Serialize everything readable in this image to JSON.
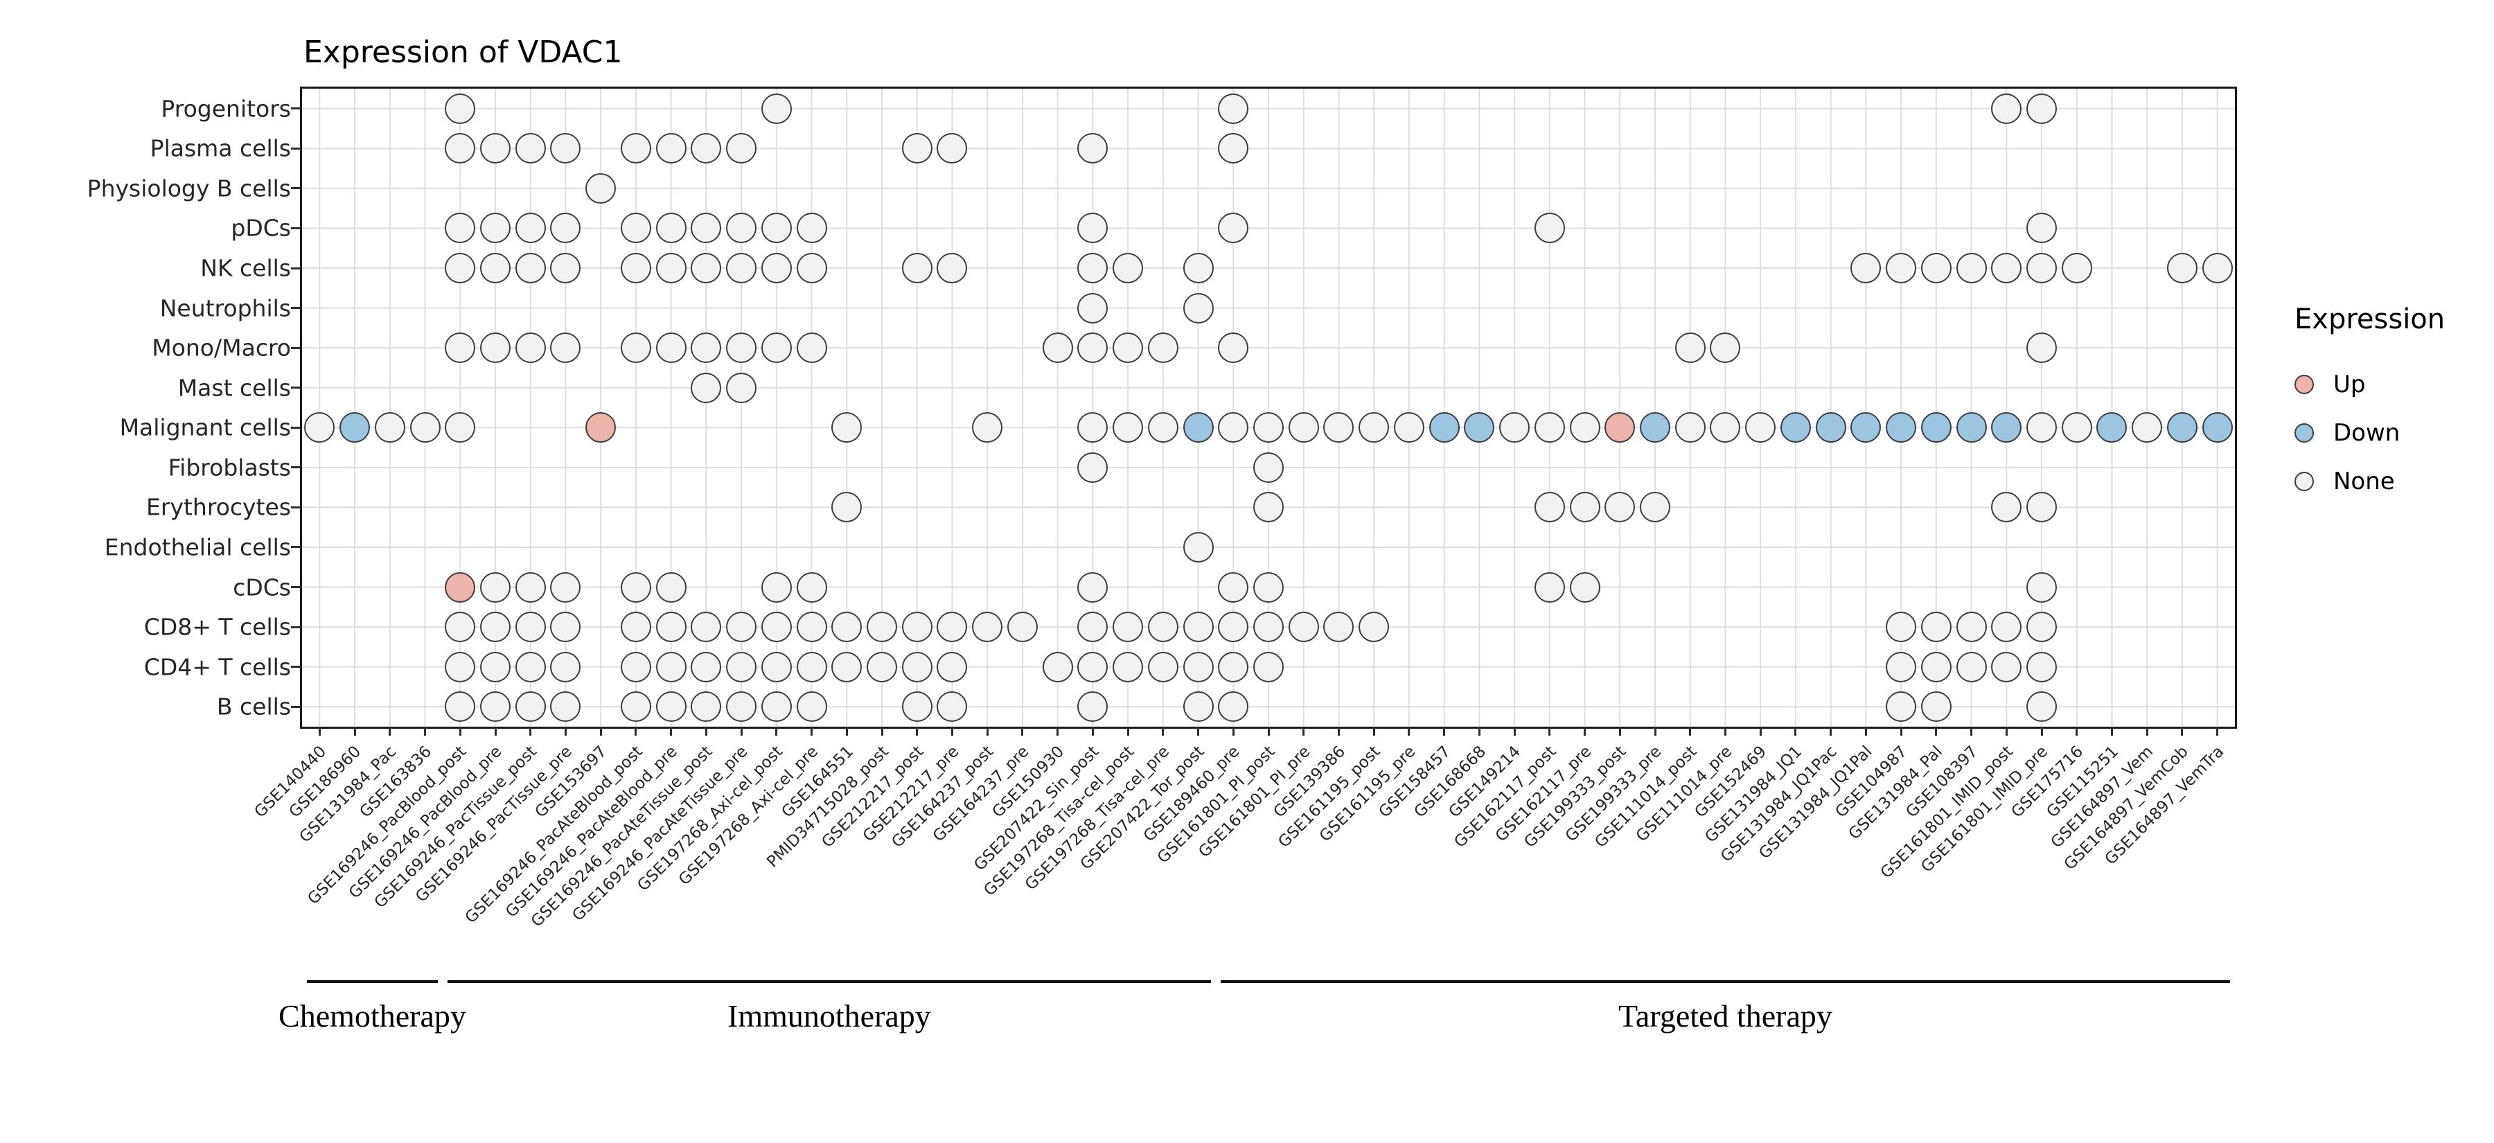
{
  "chart_data": {
    "type": "heatmap",
    "subtype": "dot-matrix",
    "title": "Expression of VDAC1",
    "xlabel": "",
    "ylabel": "",
    "grid": true,
    "rows": [
      "Progenitors",
      "Plasma cells",
      "Physiology B cells",
      "pDCs",
      "NK cells",
      "Neutrophils",
      "Mono/Macro",
      "Mast cells",
      "Malignant cells",
      "Fibroblasts",
      "Erythrocytes",
      "Endothelial cells",
      "cDCs",
      "CD8+ T cells",
      "CD4+ T cells",
      "B cells"
    ],
    "columns": [
      "GSE140440",
      "GSE186960",
      "GSE131984_Pac",
      "GSE163836",
      "GSE169246_PacBlood_post",
      "GSE169246_PacBlood_pre",
      "GSE169246_PacTissue_post",
      "GSE169246_PacTissue_pre",
      "GSE153697",
      "GSE169246_PacAteBlood_post",
      "GSE169246_PacAteBlood_pre",
      "GSE169246_PacAteTissue_post",
      "GSE169246_PacAteTissue_pre",
      "GSE197268_Axi-cel_post",
      "GSE197268_Axi-cel_pre",
      "GSE164551",
      "PMID34715028_post",
      "GSE212217_post",
      "GSE212217_pre",
      "GSE164237_post",
      "GSE164237_pre",
      "GSE150930",
      "GSE207422_Sin_post",
      "GSE197268_Tisa-cel_post",
      "GSE197268_Tisa-cel_pre",
      "GSE207422_Tor_post",
      "GSE189460_pre",
      "GSE161801_PI_post",
      "GSE161801_PI_pre",
      "GSE139386",
      "GSE161195_post",
      "GSE161195_pre",
      "GSE158457",
      "GSE168668",
      "GSE149214",
      "GSE162117_post",
      "GSE162117_pre",
      "GSE199333_post",
      "GSE199333_pre",
      "GSE111014_post",
      "GSE111014_pre",
      "GSE152469",
      "GSE131984_JQ1",
      "GSE131984_JQ1Pac",
      "GSE131984_JQ1Pal",
      "GSE104987",
      "GSE131984_Pal",
      "GSE108397",
      "GSE161801_IMID_post",
      "GSE161801_IMID_pre",
      "GSE175716",
      "GSE115251",
      "GSE164897_Vem",
      "GSE164897_VemCob",
      "GSE164897_VemTra"
    ],
    "groups": [
      {
        "label": "Chemotherapy",
        "col_start": 0,
        "col_end": 3
      },
      {
        "label": "Immunotherapy",
        "col_start": 4,
        "col_end": 25
      },
      {
        "label": "Targeted therapy",
        "col_start": 26,
        "col_end": 54
      }
    ],
    "legend": {
      "title": "Expression",
      "position": "right",
      "items": [
        {
          "label": "Up",
          "state": "up"
        },
        {
          "label": "Down",
          "state": "down"
        },
        {
          "label": "None",
          "state": "none"
        }
      ]
    },
    "colors": {
      "up": "#ECB4AB",
      "down": "#9CC5DF",
      "none": "#F2F2F2",
      "dot_stroke": "#3D3D3D",
      "grid": "#DEDEDE",
      "panel_border": "#1A1A1A"
    },
    "matrix": [
      {
        "row": "Progenitors",
        "up": [],
        "down": [],
        "none": [
          4,
          13,
          26,
          48,
          49
        ]
      },
      {
        "row": "Plasma cells",
        "up": [],
        "down": [],
        "none": [
          4,
          5,
          6,
          7,
          9,
          10,
          11,
          12,
          17,
          18,
          22,
          26
        ]
      },
      {
        "row": "Physiology B cells",
        "up": [],
        "down": [],
        "none": [
          8
        ]
      },
      {
        "row": "pDCs",
        "up": [],
        "down": [],
        "none": [
          4,
          5,
          6,
          7,
          9,
          10,
          11,
          12,
          13,
          14,
          22,
          26,
          35,
          49
        ]
      },
      {
        "row": "NK cells",
        "up": [],
        "down": [],
        "none": [
          4,
          5,
          6,
          7,
          9,
          10,
          11,
          12,
          13,
          14,
          17,
          18,
          22,
          23,
          25,
          44,
          45,
          46,
          47,
          48,
          49,
          50,
          53,
          54
        ]
      },
      {
        "row": "Neutrophils",
        "up": [],
        "down": [],
        "none": [
          22,
          25
        ]
      },
      {
        "row": "Mono/Macro",
        "up": [],
        "down": [],
        "none": [
          4,
          5,
          6,
          7,
          9,
          10,
          11,
          12,
          13,
          14,
          21,
          22,
          23,
          24,
          26,
          39,
          40,
          49
        ]
      },
      {
        "row": "Mast cells",
        "up": [],
        "down": [],
        "none": [
          11,
          12
        ]
      },
      {
        "row": "Malignant cells",
        "up": [
          8,
          37
        ],
        "down": [
          1,
          25,
          32,
          33,
          38,
          42,
          43,
          44,
          45,
          46,
          47,
          48,
          51,
          53,
          54
        ],
        "none": [
          0,
          2,
          3,
          4,
          15,
          19,
          22,
          23,
          24,
          26,
          27,
          28,
          29,
          30,
          31,
          34,
          35,
          36,
          39,
          40,
          41,
          49,
          50,
          52
        ]
      },
      {
        "row": "Fibroblasts",
        "up": [],
        "down": [],
        "none": [
          22,
          27
        ]
      },
      {
        "row": "Erythrocytes",
        "up": [],
        "down": [],
        "none": [
          15,
          27,
          35,
          36,
          37,
          38,
          48,
          49
        ]
      },
      {
        "row": "Endothelial cells",
        "up": [],
        "down": [],
        "none": [
          25
        ]
      },
      {
        "row": "cDCs",
        "up": [
          4
        ],
        "down": [],
        "none": [
          5,
          6,
          7,
          9,
          10,
          13,
          14,
          22,
          26,
          27,
          35,
          36,
          49
        ]
      },
      {
        "row": "CD8+ T cells",
        "up": [],
        "down": [],
        "none": [
          4,
          5,
          6,
          7,
          9,
          10,
          11,
          12,
          13,
          14,
          15,
          16,
          17,
          18,
          19,
          20,
          22,
          23,
          24,
          25,
          26,
          27,
          28,
          29,
          30,
          45,
          46,
          47,
          48,
          49
        ]
      },
      {
        "row": "CD4+ T cells",
        "up": [],
        "down": [],
        "none": [
          4,
          5,
          6,
          7,
          9,
          10,
          11,
          12,
          13,
          14,
          15,
          16,
          17,
          18,
          21,
          22,
          23,
          24,
          25,
          26,
          27,
          45,
          46,
          47,
          48,
          49
        ]
      },
      {
        "row": "B cells",
        "up": [],
        "down": [],
        "none": [
          4,
          5,
          6,
          7,
          9,
          10,
          11,
          12,
          13,
          14,
          17,
          18,
          22,
          25,
          26,
          45,
          46,
          49
        ]
      }
    ]
  }
}
